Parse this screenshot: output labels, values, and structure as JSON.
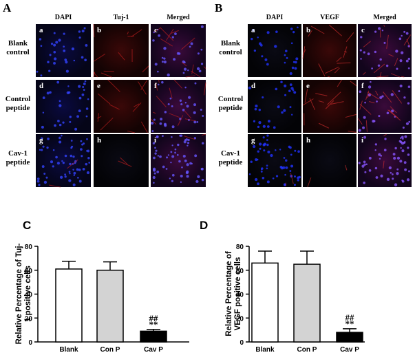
{
  "image_panels": [
    {
      "label": "A",
      "columns": [
        "DAPI",
        "Tuj-1",
        "Merged"
      ],
      "rows": [
        "Blank control",
        "Control peptide",
        "Cav-1 peptide"
      ],
      "cell_letters": [
        "a",
        "b",
        "c",
        "d",
        "e",
        "f",
        "g",
        "h",
        "i"
      ]
    },
    {
      "label": "B",
      "columns": [
        "DAPI",
        "VEGF",
        "Merged"
      ],
      "rows": [
        "Blank control",
        "Control peptide",
        "Cav-1 peptide"
      ],
      "cell_letters": [
        "a",
        "b",
        "c",
        "d",
        "e",
        "f",
        "g",
        "h",
        "i"
      ]
    }
  ],
  "chart_data": [
    {
      "type": "bar",
      "label": "C",
      "ylabel": "Relative Percentage of Tuj-1 positive cells",
      "categories": [
        "Blank",
        "Con P",
        "Cav P"
      ],
      "values": [
        61,
        60,
        9
      ],
      "errors": [
        6.5,
        7,
        1.5
      ],
      "colors": [
        "#ffffff",
        "#d3d3d3",
        "#000000"
      ],
      "markers": [
        null,
        null,
        [
          "##",
          "**"
        ]
      ],
      "ylim": [
        0,
        80
      ],
      "yticks": [
        0,
        20,
        40,
        60,
        80
      ]
    },
    {
      "type": "bar",
      "label": "D",
      "ylabel": "Relative Percentage of VEGF positive cells",
      "categories": [
        "Blank",
        "Con P",
        "Cav P"
      ],
      "values": [
        66,
        65,
        8
      ],
      "errors": [
        10,
        11,
        3
      ],
      "colors": [
        "#ffffff",
        "#d3d3d3",
        "#000000"
      ],
      "markers": [
        null,
        null,
        [
          "##",
          "**"
        ]
      ],
      "ylim": [
        0,
        80
      ],
      "yticks": [
        0,
        20,
        40,
        60,
        80
      ]
    }
  ]
}
